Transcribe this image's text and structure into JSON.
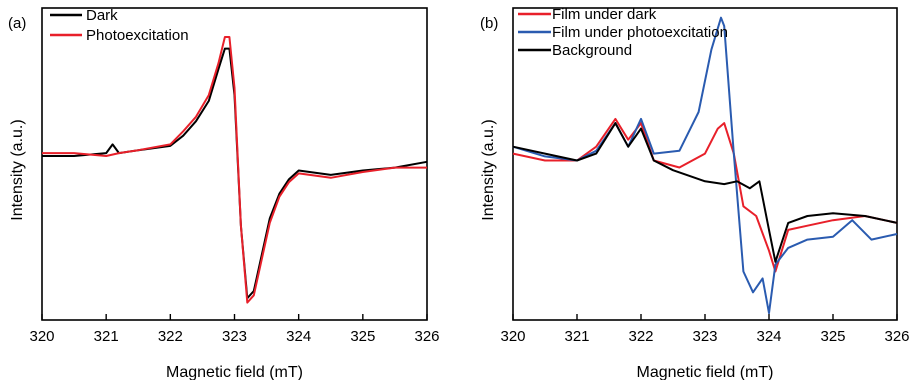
{
  "chart_data": [
    {
      "type": "line",
      "panel_label": "(a)",
      "xlabel": "Magnetic field (mT)",
      "ylabel": "Intensity (a.u.)",
      "xlim": [
        320,
        326
      ],
      "ylim": [
        -1.15,
        1.0
      ],
      "y_ticks_shown": false,
      "x_ticks": [
        320,
        321,
        322,
        323,
        324,
        325,
        326
      ],
      "x_tick_labels": [
        "320",
        "321",
        "322",
        "323",
        "324",
        "325",
        "326"
      ],
      "grid": false,
      "legend_position": "top-left",
      "series": [
        {
          "name": "Dark",
          "color": "#000000",
          "x": [
            320.0,
            320.5,
            321.0,
            321.1,
            321.2,
            321.5,
            322.0,
            322.2,
            322.4,
            322.6,
            322.75,
            322.85,
            322.92,
            323.0,
            323.1,
            323.2,
            323.3,
            323.4,
            323.55,
            323.7,
            323.85,
            324.0,
            324.5,
            325.0,
            325.5,
            326.0
          ],
          "y": [
            -0.02,
            -0.02,
            0.0,
            0.06,
            0.0,
            0.02,
            0.05,
            0.12,
            0.22,
            0.36,
            0.58,
            0.72,
            0.72,
            0.4,
            -0.5,
            -1.0,
            -0.95,
            -0.75,
            -0.45,
            -0.28,
            -0.18,
            -0.12,
            -0.15,
            -0.12,
            -0.1,
            -0.06
          ]
        },
        {
          "name": "Photoexcitation",
          "color": "#e8202a",
          "x": [
            320.0,
            320.5,
            321.0,
            321.2,
            321.5,
            322.0,
            322.2,
            322.4,
            322.6,
            322.75,
            322.85,
            322.92,
            323.0,
            323.1,
            323.2,
            323.3,
            323.4,
            323.55,
            323.7,
            323.85,
            324.0,
            324.5,
            325.0,
            325.5,
            326.0
          ],
          "y": [
            0.0,
            0.0,
            -0.02,
            0.0,
            0.02,
            0.06,
            0.15,
            0.25,
            0.4,
            0.62,
            0.8,
            0.8,
            0.45,
            -0.5,
            -1.03,
            -0.98,
            -0.78,
            -0.48,
            -0.3,
            -0.2,
            -0.14,
            -0.17,
            -0.13,
            -0.1,
            -0.1
          ]
        }
      ]
    },
    {
      "type": "line",
      "panel_label": "(b)",
      "xlabel": "Magnetic field (mT)",
      "ylabel": "Intensity (a.u.)",
      "xlim": [
        320,
        326
      ],
      "ylim": [
        -1.2,
        1.05
      ],
      "y_ticks_shown": false,
      "x_ticks": [
        320,
        321,
        322,
        323,
        324,
        325,
        326
      ],
      "x_tick_labels": [
        "320",
        "321",
        "322",
        "323",
        "324",
        "325",
        "326"
      ],
      "grid": false,
      "legend_position": "top-left",
      "series": [
        {
          "name": "Film under dark",
          "color": "#e8202a",
          "x": [
            320.0,
            320.5,
            321.0,
            321.3,
            321.6,
            321.8,
            322.0,
            322.2,
            322.6,
            323.0,
            323.2,
            323.3,
            323.45,
            323.6,
            323.8,
            324.0,
            324.1,
            324.3,
            324.6,
            325.0,
            325.5,
            326.0
          ],
          "y": [
            0.0,
            -0.05,
            -0.05,
            0.05,
            0.25,
            0.1,
            0.22,
            -0.05,
            -0.1,
            0.0,
            0.18,
            0.22,
            0.0,
            -0.38,
            -0.45,
            -0.7,
            -0.85,
            -0.55,
            -0.52,
            -0.48,
            -0.45,
            -0.5
          ]
        },
        {
          "name": "Film under photoexcitation",
          "color": "#2a5bb0",
          "x": [
            320.0,
            320.5,
            321.0,
            321.3,
            321.6,
            321.8,
            322.0,
            322.2,
            322.6,
            322.9,
            323.1,
            323.25,
            323.3,
            323.45,
            323.6,
            323.75,
            323.9,
            324.0,
            324.1,
            324.3,
            324.6,
            325.0,
            325.3,
            325.6,
            326.0
          ],
          "y": [
            0.05,
            -0.02,
            -0.05,
            0.02,
            0.22,
            0.05,
            0.25,
            0.0,
            0.02,
            0.3,
            0.75,
            0.98,
            0.92,
            0.0,
            -0.85,
            -1.0,
            -0.9,
            -1.15,
            -0.8,
            -0.68,
            -0.62,
            -0.6,
            -0.48,
            -0.62,
            -0.58
          ]
        },
        {
          "name": "Background",
          "color": "#000000",
          "x": [
            320.0,
            320.5,
            321.0,
            321.3,
            321.6,
            321.8,
            322.0,
            322.2,
            322.5,
            323.0,
            323.3,
            323.5,
            323.7,
            323.85,
            324.0,
            324.1,
            324.3,
            324.6,
            325.0,
            325.5,
            326.0
          ],
          "y": [
            0.05,
            0.0,
            -0.05,
            0.0,
            0.22,
            0.05,
            0.18,
            -0.05,
            -0.12,
            -0.2,
            -0.22,
            -0.2,
            -0.25,
            -0.2,
            -0.55,
            -0.78,
            -0.5,
            -0.45,
            -0.43,
            -0.45,
            -0.5
          ]
        }
      ]
    }
  ]
}
